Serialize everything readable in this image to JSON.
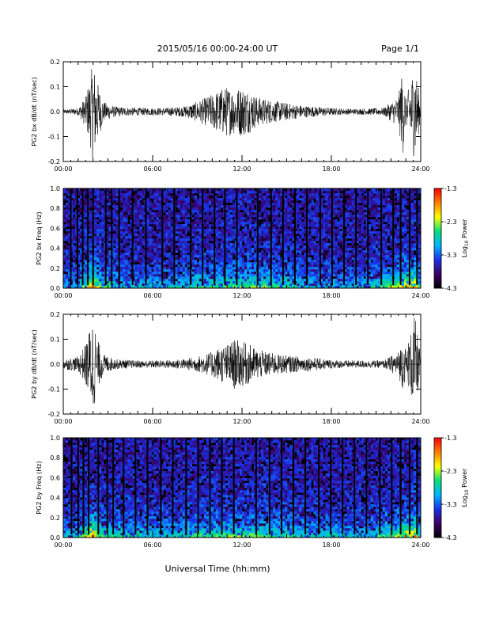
{
  "header": {
    "title": "2015/05/16  00:00-24:00 UT",
    "page_label": "Page 1/1"
  },
  "footer": {
    "xlabel": "Universal Time (hh:mm)"
  },
  "colorbar": {
    "ticks": [
      "-1.3",
      "-2.3",
      "-3.3",
      "-4.3"
    ],
    "tick_values": [
      -1.3,
      -2.3,
      -3.3,
      -4.3
    ],
    "range": [
      -4.3,
      -1.3
    ],
    "label_prefix": "Log",
    "label_sub": "10",
    "label_suffix": " Power",
    "colors": [
      "#000000",
      "#3a0060",
      "#1a2fe6",
      "#00b4ff",
      "#00e07a",
      "#ffff00",
      "#ff8000",
      "#ff0000"
    ]
  },
  "chart_data": [
    {
      "type": "line",
      "id": "bx-waveform",
      "ylabel": "PG2 bx dB/dt (nT/sec)",
      "xticks": [
        "00:00",
        "06:00",
        "12:00",
        "18:00",
        "24:00"
      ],
      "xlim": [
        0,
        24
      ],
      "ylim": [
        -0.2,
        0.2
      ],
      "yticks": [
        "0.2",
        "0.1",
        "0.0",
        "-0.1",
        "-0.2"
      ],
      "ytick_values": [
        0.2,
        0.1,
        0.0,
        -0.1,
        -0.2
      ],
      "envelope_hours": [
        0,
        1.0,
        1.5,
        1.8,
        2.0,
        2.3,
        2.7,
        3.5,
        5.0,
        6.5,
        8.0,
        9.0,
        10.0,
        10.5,
        11.0,
        11.5,
        12.0,
        12.5,
        13.0,
        14.0,
        15.0,
        16.0,
        17.0,
        18.0,
        19.0,
        20.0,
        21.5,
        22.5,
        22.8,
        23.0,
        23.3,
        23.6,
        24.0
      ],
      "envelope_amplitude": [
        0.008,
        0.015,
        0.06,
        0.14,
        0.2,
        0.12,
        0.04,
        0.02,
        0.015,
        0.015,
        0.02,
        0.04,
        0.07,
        0.09,
        0.1,
        0.09,
        0.1,
        0.085,
        0.06,
        0.045,
        0.035,
        0.025,
        0.02,
        0.015,
        0.012,
        0.012,
        0.015,
        0.06,
        0.18,
        0.05,
        0.12,
        0.2,
        0.03
      ],
      "color": "#000000"
    },
    {
      "type": "heatmap",
      "id": "bx-spectrogram",
      "ylabel": "PG2 bx Freq (Hz)",
      "xticks": [
        "00:00",
        "06:00",
        "12:00",
        "18:00",
        "24:00"
      ],
      "xlim": [
        0,
        24
      ],
      "ylim": [
        0,
        1.0
      ],
      "yticks": [
        "1.0",
        "0.8",
        "0.6",
        "0.4",
        "0.2",
        "0.0"
      ],
      "ytick_values": [
        1.0,
        0.8,
        0.6,
        0.4,
        0.2,
        0.0
      ],
      "zlim": [
        -4.3,
        -1.3
      ],
      "activity_hours": [
        0,
        1.0,
        1.8,
        2.0,
        2.5,
        4.0,
        6.0,
        8.0,
        10.0,
        12.0,
        14.0,
        15.0,
        16.0,
        18.0,
        20.0,
        22.5,
        23.0,
        23.6,
        24.0
      ],
      "activity_level": [
        0.25,
        0.35,
        0.85,
        1.0,
        0.55,
        0.4,
        0.35,
        0.4,
        0.55,
        0.6,
        0.55,
        0.5,
        0.4,
        0.35,
        0.3,
        0.7,
        0.85,
        0.9,
        0.4
      ],
      "gap_hours": [
        0.45,
        0.9,
        1.25,
        1.6,
        1.95,
        2.8,
        3.2,
        3.7,
        4.6,
        5.5,
        6.6,
        7.4,
        8.5,
        9.3,
        10.1,
        10.8,
        11.6,
        13.0,
        13.9,
        14.7,
        15.5,
        16.3,
        17.2,
        18.0,
        18.8,
        19.6,
        20.4,
        21.3,
        22.1,
        22.6,
        23.2,
        23.7
      ]
    },
    {
      "type": "line",
      "id": "by-waveform",
      "ylabel": "PG2 by dB/dt (nT/sec)",
      "xticks": [
        "00:00",
        "06:00",
        "12:00",
        "18:00",
        "24:00"
      ],
      "xlim": [
        0,
        24
      ],
      "ylim": [
        -0.2,
        0.2
      ],
      "yticks": [
        "0.2",
        "0.1",
        "0.0",
        "-0.1",
        "-0.2"
      ],
      "ytick_values": [
        0.2,
        0.1,
        0.0,
        -0.1,
        -0.2
      ],
      "envelope_hours": [
        0,
        1.0,
        1.5,
        1.8,
        2.0,
        2.3,
        2.7,
        3.5,
        5.0,
        6.5,
        8.0,
        9.0,
        10.0,
        10.5,
        11.0,
        11.5,
        12.0,
        12.5,
        13.0,
        14.0,
        15.0,
        16.0,
        17.0,
        18.0,
        19.0,
        20.0,
        21.5,
        22.5,
        22.8,
        23.0,
        23.3,
        23.6,
        24.0
      ],
      "envelope_amplitude": [
        0.02,
        0.03,
        0.08,
        0.15,
        0.2,
        0.1,
        0.04,
        0.02,
        0.015,
        0.015,
        0.02,
        0.03,
        0.05,
        0.07,
        0.08,
        0.1,
        0.09,
        0.08,
        0.06,
        0.045,
        0.035,
        0.03,
        0.025,
        0.018,
        0.015,
        0.015,
        0.015,
        0.05,
        0.1,
        0.06,
        0.12,
        0.2,
        0.03
      ],
      "color": "#000000"
    },
    {
      "type": "heatmap",
      "id": "by-spectrogram",
      "ylabel": "PG2 by Freq (Hz)",
      "xticks": [
        "00:00",
        "06:00",
        "12:00",
        "18:00",
        "24:00"
      ],
      "xlim": [
        0,
        24
      ],
      "ylim": [
        0,
        1.0
      ],
      "yticks": [
        "1.0",
        "0.8",
        "0.6",
        "0.4",
        "0.2",
        "0.0"
      ],
      "ytick_values": [
        1.0,
        0.8,
        0.6,
        0.4,
        0.2,
        0.0
      ],
      "zlim": [
        -4.3,
        -1.3
      ],
      "activity_hours": [
        0,
        1.0,
        1.8,
        2.0,
        2.5,
        4.0,
        6.0,
        8.0,
        10.0,
        12.0,
        14.0,
        15.0,
        16.0,
        18.0,
        20.0,
        22.5,
        23.0,
        23.6,
        24.0
      ],
      "activity_level": [
        0.3,
        0.4,
        0.9,
        1.0,
        0.6,
        0.45,
        0.4,
        0.45,
        0.6,
        0.6,
        0.55,
        0.5,
        0.45,
        0.4,
        0.35,
        0.65,
        0.8,
        0.9,
        0.45
      ],
      "gap_hours": [
        0.5,
        0.95,
        1.3,
        1.65,
        2.3,
        2.9,
        3.3,
        4.0,
        4.8,
        5.6,
        6.5,
        7.3,
        8.2,
        9.0,
        9.8,
        10.6,
        11.4,
        12.9,
        13.8,
        14.6,
        15.4,
        16.2,
        17.1,
        17.9,
        18.7,
        19.5,
        20.3,
        21.2,
        22.0,
        22.6,
        23.2,
        23.7
      ]
    }
  ]
}
